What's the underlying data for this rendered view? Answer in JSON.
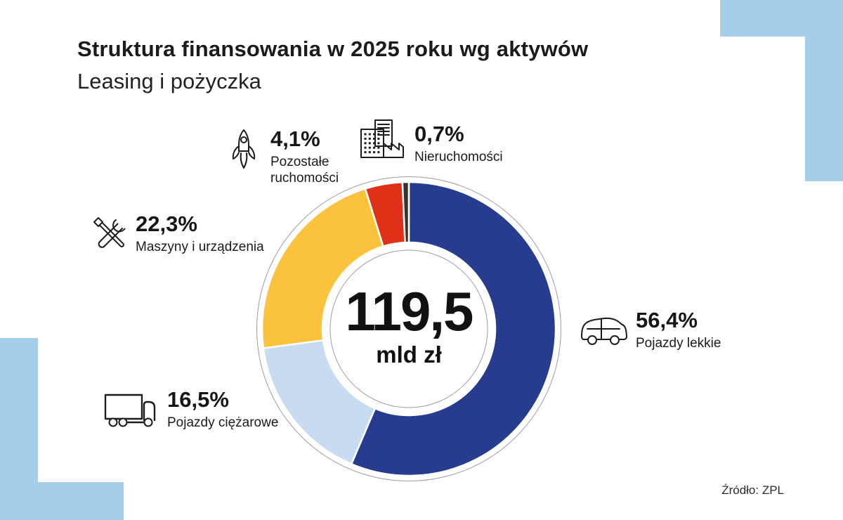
{
  "page": {
    "title": "Struktura finansowania w 2025 roku wg aktywów",
    "subtitle": "Leasing i pożyczka",
    "source": "Źródło: ZPL",
    "background_color": "#ffffff",
    "corner_color": "#a6cdea"
  },
  "chart_data": {
    "type": "pie",
    "variant": "donut",
    "title": "Struktura finansowania w 2025 roku wg aktywów",
    "subtitle": "Leasing i pożyczka",
    "center_value": "119,5",
    "center_unit": "mld zł",
    "start_angle_deg": 0,
    "direction": "clockwise",
    "legend_position": "around-chart",
    "ring_outline_color": "#9e9e9e",
    "segments": [
      {
        "name": "Pojazdy lekkie",
        "value": 56.4,
        "pct_label": "56,4%",
        "color": "#263d8f",
        "icon": "van-icon"
      },
      {
        "name": "Pojazdy ciężarowe",
        "value": 16.5,
        "pct_label": "16,5%",
        "color": "#c7dbf1",
        "icon": "truck-icon"
      },
      {
        "name": "Maszyny i urządzenia",
        "value": 22.3,
        "pct_label": "22,3%",
        "color": "#fbc23d",
        "icon": "tools-icon"
      },
      {
        "name": "Pozostałe ruchomości",
        "value": 4.1,
        "pct_label": "4,1%",
        "color": "#e03118",
        "icon": "rocket-icon"
      },
      {
        "name": "Nieruchomości",
        "value": 0.7,
        "pct_label": "0,7%",
        "color": "#37322f",
        "icon": "buildings-icon"
      }
    ]
  }
}
